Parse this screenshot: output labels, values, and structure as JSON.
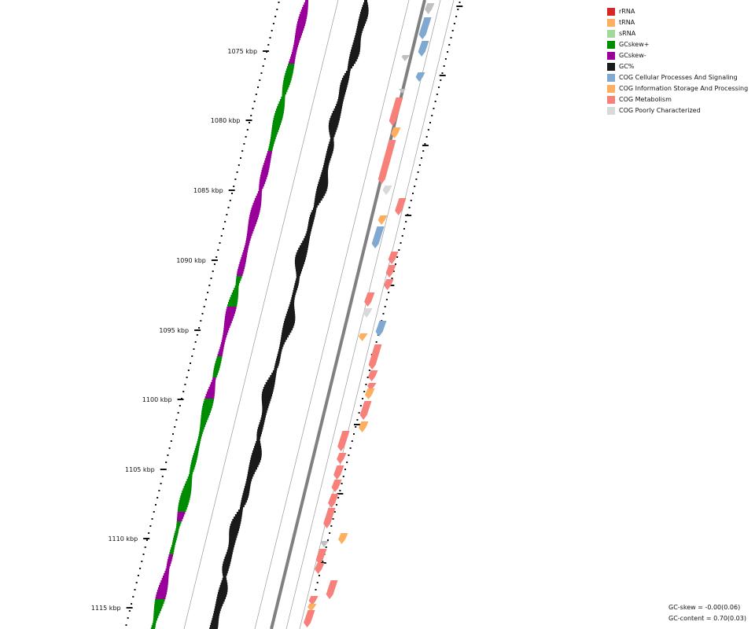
{
  "tick_labels": [
    "1075 kbp",
    "1080 kbp",
    "1085 kbp",
    "1090 kbp",
    "1095 kbp",
    "1100 kbp",
    "1105 kbp",
    "1110 kbp",
    "1115 kbp"
  ],
  "legend": [
    {
      "label": "rRNA",
      "color": "#d62728"
    },
    {
      "label": "tRNA",
      "color": "#fdae61"
    },
    {
      "label": "sRNA",
      "color": "#a1d99b"
    },
    {
      "label": "GCskew+",
      "color": "#008c00"
    },
    {
      "label": "GCskew-",
      "color": "#990099"
    },
    {
      "label": "GC%",
      "color": "#1a1a1a"
    },
    {
      "label": "COG Cellular Processes And Signaling",
      "color": "#7fa9d0"
    },
    {
      "label": "COG Information Storage And Processing",
      "color": "#fdae61"
    },
    {
      "label": "COG Metabolism",
      "color": "#f8807a"
    },
    {
      "label": "COG Poorly Characterized",
      "color": "#d9d9d9"
    }
  ],
  "stats": {
    "gc_skew": "GC-skew = -0.00(0.06)",
    "gc_content": "GC-content = 0.70(0.03)"
  }
}
